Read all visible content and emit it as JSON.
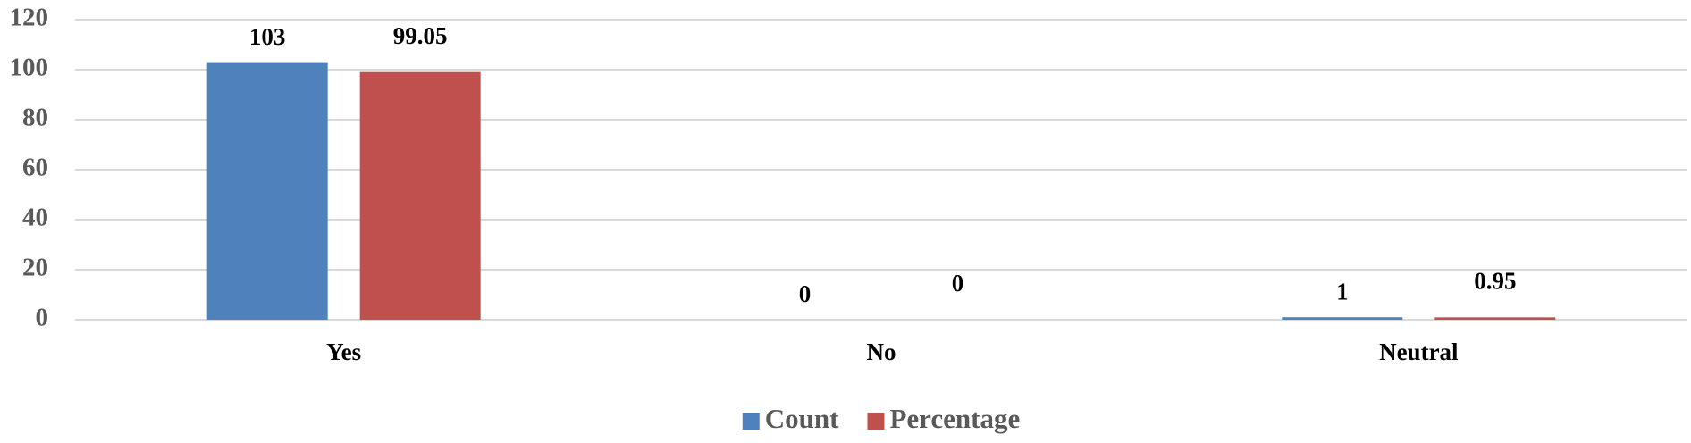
{
  "chart_data": {
    "type": "bar",
    "categories": [
      "Yes",
      "No",
      "Neutral"
    ],
    "series": [
      {
        "name": "Count",
        "color": "#4f81bd",
        "values": [
          103,
          0,
          1
        ]
      },
      {
        "name": "Percentage",
        "color": "#c0504d",
        "values": [
          99.05,
          0,
          0.95
        ]
      }
    ],
    "ylim": [
      0,
      120
    ],
    "yticks": [
      0,
      20,
      40,
      60,
      80,
      100,
      120
    ],
    "grid": true,
    "legend": "bottom"
  }
}
